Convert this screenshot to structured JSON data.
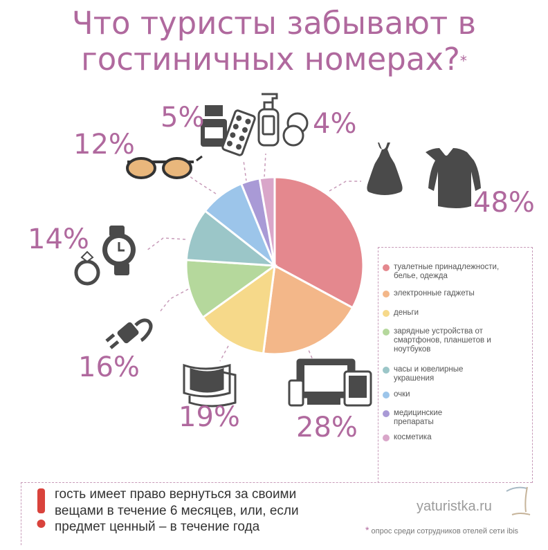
{
  "title": "Что туристы забывают в гостиничных номерах?",
  "title_line1": "Что туристы забывают в",
  "title_line2": "гостиничных номерах?",
  "title_star": "*",
  "chart_data": {
    "type": "pie",
    "title": "Что туристы забывают в гостиничных номерах?",
    "categories": [
      "туалетные принадлежности, белье, одежда",
      "электронные гаджеты",
      "деньги",
      "зарядные устройства от смартфонов, планшетов и ноутбуков",
      "часы и ювелирные украшения",
      "очки",
      "медицинские препараты",
      "косметика"
    ],
    "values": [
      48,
      28,
      19,
      16,
      14,
      12,
      5,
      4
    ],
    "labels": [
      "48%",
      "28%",
      "19%",
      "16%",
      "14%",
      "12%",
      "5%",
      "4%"
    ],
    "colors": [
      "#e4888e",
      "#f3b789",
      "#f6d98a",
      "#b5d89c",
      "#9bc6c8",
      "#9cc5ea",
      "#a99ad6",
      "#d9a6c9"
    ],
    "legend_position": "right"
  },
  "legend": [
    {
      "label": "туалетные принадлежности, белье, одежда",
      "lines": [
        "туалетные принадлежности,",
        "белье, одежда"
      ],
      "color": "#e4888e"
    },
    {
      "label": "электронные гаджеты",
      "lines": [
        "электронные гаджеты"
      ],
      "color": "#f3b789"
    },
    {
      "label": "деньги",
      "lines": [
        "деньги"
      ],
      "color": "#f6d98a"
    },
    {
      "label": "зарядные устройства от смартфонов, планшетов и ноутбуков",
      "lines": [
        "зарядные устройства от",
        "смартфонов, планшетов и",
        "ноутбуков"
      ],
      "color": "#b5d89c"
    },
    {
      "label": "часы и ювелирные украшения",
      "lines": [
        "часы и ювелирные",
        "украшения"
      ],
      "color": "#9bc6c8"
    },
    {
      "label": "очки",
      "lines": [
        "очки"
      ],
      "color": "#9cc5ea"
    },
    {
      "label": "медицинские препараты",
      "lines": [
        "медицинские",
        "препараты"
      ],
      "color": "#a99ad6"
    },
    {
      "label": "косметика",
      "lines": [
        "косметика"
      ],
      "color": "#d9a6c9"
    }
  ],
  "note": {
    "lines": [
      "гость имеет право вернуться за своими",
      "вещами в течение 6 месяцев, или, если",
      "предмет ценный – в течение года"
    ],
    "exclamation_color": "#d9433c"
  },
  "site": "yaturistka.ru",
  "footnote_mark": "*",
  "footnote": "опрос среди сотрудников отелей сети ibis",
  "icons": [
    "clothes-icon",
    "devices-icon",
    "money-icon",
    "charger-icon",
    "watch-icon",
    "ring-icon",
    "sunglasses-icon",
    "medicine-bottle-icon",
    "pills-icon",
    "lotion-bottle-icon",
    "compact-mirror-icon",
    "palm-tree-logo-icon"
  ]
}
